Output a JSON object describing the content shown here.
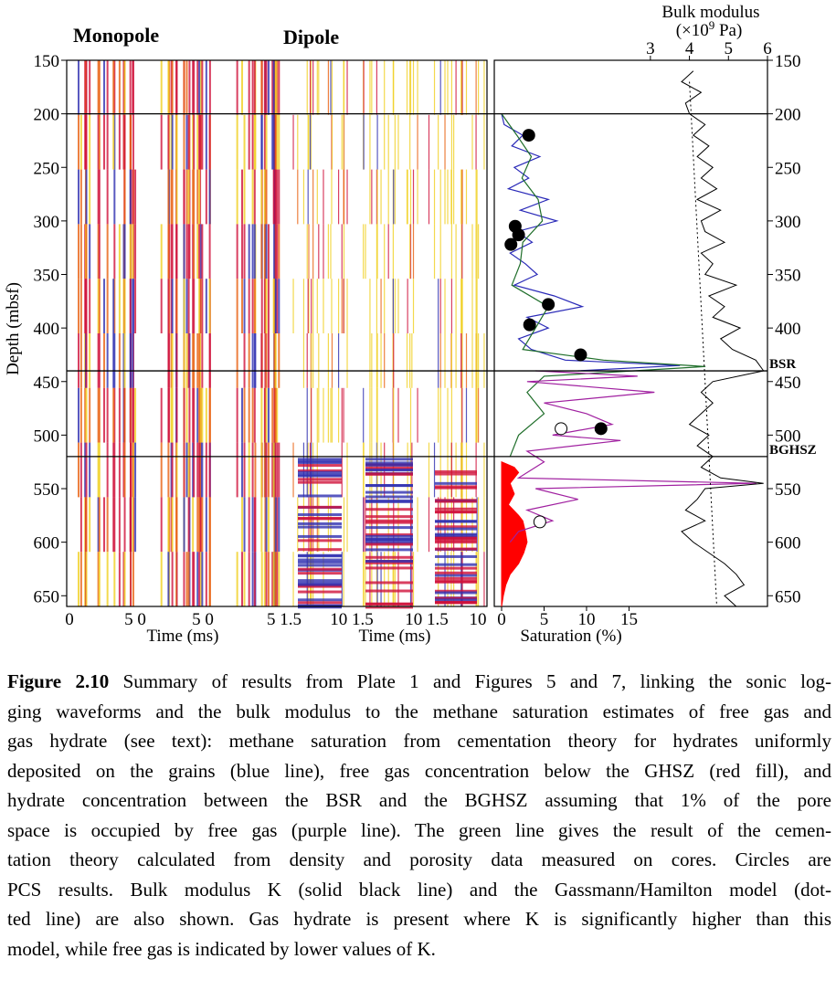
{
  "figure": {
    "labels": {
      "monopole": "Monopole",
      "dipole": "Dipole",
      "depth_axis": "Depth (mbsf)",
      "time_axis": "Time (ms)",
      "saturation_axis": "Saturation (%)",
      "bulk_title": "Bulk modulus",
      "bulk_unit": {
        "prefix": "(×10",
        "sup": "9",
        "suffix": " Pa)"
      }
    },
    "depth": {
      "ylim": [
        150,
        660
      ],
      "yticks": [
        150,
        200,
        250,
        300,
        350,
        400,
        450,
        500,
        550,
        600,
        650
      ]
    },
    "time_tick_labels": [
      "0",
      "5 0",
      "5 0",
      "5 1.5",
      "10 1.5",
      "10 1.5",
      "10"
    ],
    "horizons": [
      {
        "depth": 200
      },
      {
        "depth": 440,
        "label": "BSR"
      },
      {
        "depth": 520,
        "label": "BGHSZ"
      }
    ],
    "saturation": {
      "xlim": [
        -0.86,
        31.3
      ],
      "xticks": [
        0,
        5,
        10,
        15
      ],
      "series": [
        {
          "color": "#2a2ab8",
          "depth": [
            200,
            210,
            220,
            230,
            240,
            250,
            260,
            270,
            280,
            290,
            300,
            310,
            320,
            330,
            340,
            350,
            360,
            370,
            380,
            390,
            400,
            410,
            420,
            430,
            435,
            440
          ],
          "values": [
            0,
            0.3,
            2.5,
            1.2,
            4.5,
            1.5,
            3.2,
            0.8,
            5.5,
            2.2,
            6.5,
            1.8,
            3.6,
            1.0,
            2.8,
            4.2,
            1.5,
            6.2,
            9.5,
            3.0,
            5.5,
            2.0,
            3.5,
            7.5,
            21,
            9
          ]
        },
        {
          "color": "#1f6e2a",
          "depth": [
            200,
            220,
            240,
            260,
            280,
            300,
            320,
            340,
            360,
            380,
            400,
            420,
            430,
            436,
            445,
            460,
            480,
            500,
            520
          ],
          "values": [
            0,
            1.8,
            3.5,
            2.4,
            4.3,
            4.8,
            2.5,
            2.2,
            1.2,
            5.5,
            4.0,
            2.5,
            12,
            24,
            5,
            3,
            5,
            2,
            1
          ]
        },
        {
          "color": "#a020a0",
          "depth": [
            440,
            445,
            450,
            460,
            470,
            480,
            490,
            500,
            505,
            515,
            525,
            540,
            545,
            550,
            560,
            570,
            580,
            590,
            600
          ],
          "values": [
            4,
            16,
            3,
            18,
            5,
            10,
            13,
            6,
            14,
            3,
            5,
            2,
            30,
            4,
            9,
            3,
            6,
            2,
            1
          ]
        }
      ],
      "free_gas": {
        "color": "#ff0000",
        "depth": [
          525,
          530,
          535,
          545,
          555,
          565,
          575,
          580,
          590,
          600,
          610,
          620,
          630,
          640,
          650,
          660
        ],
        "values": [
          0,
          1.5,
          2,
          1,
          1.5,
          0.8,
          2,
          2.5,
          2.8,
          3,
          2.6,
          2,
          1,
          0.5,
          0.2,
          0
        ]
      },
      "pcs_filled": {
        "values": [
          3.2,
          1.6,
          2.0,
          1.1,
          5.5,
          3.3,
          9.3,
          11.7
        ],
        "depth": [
          220,
          305,
          313,
          322,
          378,
          397,
          425,
          494
        ]
      },
      "pcs_open": {
        "values": [
          7.0,
          4.5
        ],
        "depth": [
          494,
          581
        ]
      }
    },
    "bulk": {
      "xlim": [
        -1,
        6
      ],
      "xticks": [
        3,
        4,
        5,
        6
      ],
      "depth": [
        160,
        170,
        180,
        190,
        200,
        210,
        220,
        230,
        240,
        250,
        260,
        270,
        280,
        290,
        300,
        310,
        320,
        330,
        340,
        350,
        360,
        370,
        380,
        390,
        400,
        410,
        420,
        430,
        440,
        450,
        460,
        470,
        480,
        490,
        500,
        510,
        520,
        530,
        540,
        545,
        550,
        560,
        570,
        580,
        590,
        600,
        610,
        620,
        630,
        640,
        650,
        660
      ],
      "values": [
        4.1,
        3.8,
        4.3,
        3.9,
        4.0,
        4.4,
        4.1,
        4.5,
        4.2,
        4.6,
        4.3,
        4.7,
        4.2,
        4.8,
        4.3,
        4.4,
        4.9,
        4.3,
        4.6,
        4.4,
        5.2,
        4.5,
        4.9,
        4.6,
        5.3,
        4.8,
        5.1,
        5.7,
        5.9,
        4.6,
        4.3,
        4.6,
        4.3,
        4.0,
        4.5,
        4.2,
        4.6,
        4.3,
        4.8,
        5.9,
        4.4,
        4.2,
        3.9,
        4.4,
        3.8,
        4.1,
        4.5,
        4.9,
        5.2,
        5.4,
        4.9,
        5.2
      ],
      "model": {
        "values": [
          4.0,
          4.7
        ],
        "depth": [
          170,
          660
        ]
      }
    }
  },
  "caption": {
    "label": "Figure 2.10",
    "lines": [
      " Summary of results from Plate 1 and Figures 5 and 7, linking the sonic log-",
      "ging waveforms and the bulk modulus to the methane saturation estimates of free gas and",
      "gas hydrate (see text): methane saturation from cementation theory for hydrates uniformly",
      "deposited on the grains (blue line), free gas concentration below the GHSZ (red fill), and",
      "hydrate concentration between the BSR and the BGHSZ assuming that 1% of the pore",
      "space is occupied by free gas (purple line). The green line gives the result of the cemen-",
      "tation theory calculated from density and porosity data measured on cores. Circles are",
      "PCS results. Bulk modulus K (solid black line) and the Gassmann/Hamilton model (dot-",
      "ted line) are also shown. Gas hydrate is present where K is significantly higher than this",
      "model, while free gas is indicated by lower values of K."
    ]
  }
}
